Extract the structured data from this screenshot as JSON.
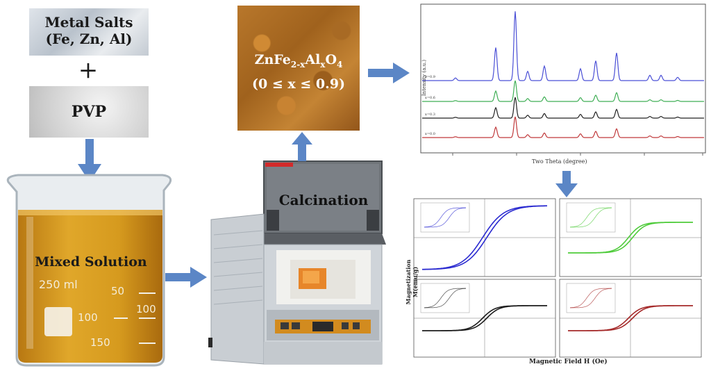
{
  "salts": {
    "line1": "Metal Salts",
    "line2": "(Fe, Zn, Al)"
  },
  "plus": "+",
  "pvp": "PVP",
  "beaker": {
    "label": "Mixed Solution",
    "volume": "250 ml",
    "marks": [
      "50",
      "100",
      "100",
      "150"
    ]
  },
  "furnace": {
    "label": "Calcination"
  },
  "powder": {
    "formula_base": "ZnFe",
    "formula_sub1": "2-x",
    "formula_mid": "Al",
    "formula_sub2": "x",
    "formula_o": "O",
    "formula_sub3": "4",
    "range": "(0 ≤ x ≤ 0.9)"
  },
  "xrd": {
    "xlabel": "Two Theta (degree)",
    "ylabel": "Intensity (a.u.)",
    "series": [
      "x=0.9",
      "x=0.6",
      "x=0.3",
      "x=0.0"
    ],
    "colors": [
      "#4a4fd6",
      "#3fae55",
      "#222222",
      "#c0393b"
    ]
  },
  "mh": {
    "xlabel": "Magnetic Field H (Oe)",
    "ylabel": "Magnetization M(emu/g)",
    "colors": [
      "#2b2bd0",
      "#4ecb3a",
      "#1c1c1c",
      "#a52a2a"
    ]
  },
  "colors": {
    "arrow": "#5b86c6",
    "powder": "#b5742a",
    "liquid": "#d49a1c"
  }
}
